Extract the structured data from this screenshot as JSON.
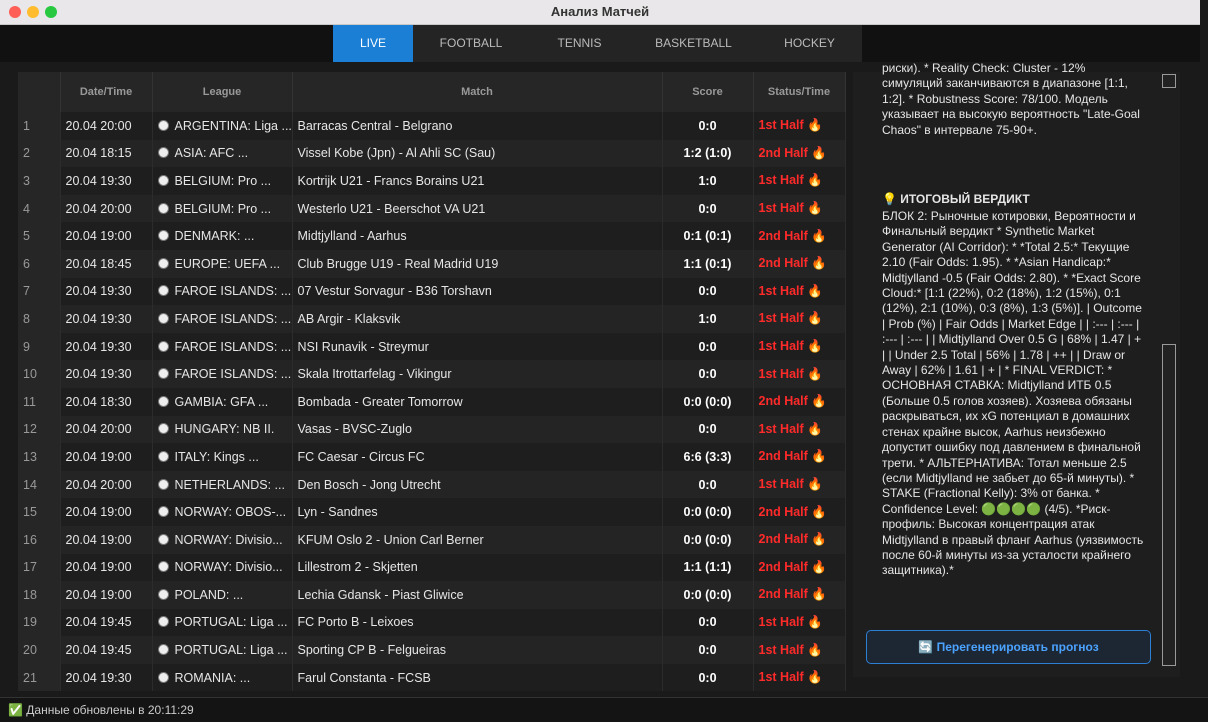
{
  "window": {
    "title": "Анализ Матчей"
  },
  "tabs": [
    "LIVE",
    "FOOTBALL",
    "TENNIS",
    "BASKETBALL",
    "HOCKEY"
  ],
  "table": {
    "headers": [
      "Date/Time",
      "League",
      "Match",
      "Score",
      "Status/Time"
    ],
    "rows": [
      [
        "1",
        "20.04 20:00",
        "ARGENTINA: Liga ...",
        "Barracas Central - Belgrano",
        "0:0",
        "1st Half 🔥"
      ],
      [
        "2",
        "20.04 18:15",
        "ASIA: AFC ...",
        "Vissel Kobe (Jpn) - Al Ahli SC (Sau)",
        "1:2  (1:0)",
        "2nd Half 🔥"
      ],
      [
        "3",
        "20.04 19:30",
        "BELGIUM: Pro ...",
        "Kortrijk U21 - Francs Borains U21",
        "1:0",
        "1st Half 🔥"
      ],
      [
        "4",
        "20.04 20:00",
        "BELGIUM: Pro ...",
        "Westerlo U21 - Beerschot VA U21",
        "0:0",
        "1st Half 🔥"
      ],
      [
        "5",
        "20.04 19:00",
        "DENMARK: ...",
        "Midtjylland - Aarhus",
        "0:1  (0:1)",
        "2nd Half 🔥"
      ],
      [
        "6",
        "20.04 18:45",
        "EUROPE: UEFA ...",
        "Club Brugge U19 - Real Madrid U19",
        "1:1  (0:1)",
        "2nd Half 🔥"
      ],
      [
        "7",
        "20.04 19:30",
        "FAROE ISLANDS: ...",
        "07 Vestur Sorvagur - B36 Torshavn",
        "0:0",
        "1st Half 🔥"
      ],
      [
        "8",
        "20.04 19:30",
        "FAROE ISLANDS: ...",
        "AB Argir - Klaksvik",
        "1:0",
        "1st Half 🔥"
      ],
      [
        "9",
        "20.04 19:30",
        "FAROE ISLANDS: ...",
        "NSI Runavik - Streymur",
        "0:0",
        "1st Half 🔥"
      ],
      [
        "10",
        "20.04 19:30",
        "FAROE ISLANDS: ...",
        "Skala Itrottarfelag - Vikingur",
        "0:0",
        "1st Half 🔥"
      ],
      [
        "11",
        "20.04 18:30",
        "GAMBIA: GFA ...",
        "Bombada - Greater Tomorrow",
        "0:0  (0:0)",
        "2nd Half 🔥"
      ],
      [
        "12",
        "20.04 20:00",
        "HUNGARY: NB II.",
        "Vasas - BVSC-Zuglo",
        "0:0",
        "1st Half 🔥"
      ],
      [
        "13",
        "20.04 19:00",
        "ITALY: Kings ...",
        "FC Caesar - Circus FC",
        "6:6  (3:3)",
        "2nd Half 🔥"
      ],
      [
        "14",
        "20.04 20:00",
        "NETHERLANDS: ...",
        "Den Bosch - Jong Utrecht",
        "0:0",
        "1st Half 🔥"
      ],
      [
        "15",
        "20.04 19:00",
        "NORWAY: OBOS-...",
        "Lyn - Sandnes",
        "0:0  (0:0)",
        "2nd Half 🔥"
      ],
      [
        "16",
        "20.04 19:00",
        "NORWAY: Divisio...",
        "KFUM Oslo 2 - Union Carl Berner",
        "0:0  (0:0)",
        "2nd Half 🔥"
      ],
      [
        "17",
        "20.04 19:00",
        "NORWAY: Divisio...",
        "Lillestrom 2 - Skjetten",
        "1:1  (1:1)",
        "2nd Half 🔥"
      ],
      [
        "18",
        "20.04 19:00",
        "POLAND: ...",
        "Lechia Gdansk - Piast Gliwice",
        "0:0  (0:0)",
        "2nd Half 🔥"
      ],
      [
        "19",
        "20.04 19:45",
        "PORTUGAL: Liga ...",
        "FC Porto B - Leixoes",
        "0:0",
        "1st Half 🔥"
      ],
      [
        "20",
        "20.04 19:45",
        "PORTUGAL: Liga ...",
        "Sporting CP B - Felgueiras",
        "0:0",
        "1st Half 🔥"
      ],
      [
        "21",
        "20.04 19:30",
        "ROMANIA: ...",
        "Farul Constanta - FCSB",
        "0:0",
        "1st Half 🔥"
      ]
    ]
  },
  "panel": {
    "intro": "риски). * Reality Check: Cluster - 12% симуляций заканчиваются в диапазоне [1:1, 1:2]. * Robustness Score: 78/100. Модель указывает на высокую вероятность \"Late-Goal Chaos\" в интервале 75-90+.",
    "verdict_title": "💡 ИТОГОВЫЙ ВЕРДИКТ",
    "verdict_text": "БЛОК 2: Рыночные котировки, Вероятности и Финальный вердикт * Synthetic Market Generator (AI Corridor): * *Total 2.5:* Текущие 2.10 (Fair Odds: 1.95). * *Asian Handicap:* Midtjylland -0.5 (Fair Odds: 2.80). * *Exact Score Cloud:* [1:1 (22%), 0:2 (18%), 1:2 (15%), 0:1 (12%), 2:1 (10%), 0:3 (8%), 1:3 (5%)]. | Outcome | Prob (%) | Fair Odds | Market Edge | | :--- | :--- | :--- | :--- | | Midtjylland Over 0.5 G | 68% | 1.47 | + | | Under 2.5 Total | 56% | 1.78 | ++ | | Draw or Away | 62% | 1.61 | + | * FINAL VERDICT: * ОСНОВНАЯ СТАВКА: Midtjylland ИТБ 0.5 (Больше 0.5 голов хозяев). Хозяева обязаны раскрываться, их xG потенциал в домашних стенах крайне высок, Aarhus неизбежно допустит ошибку под давлением в финальной трети. * АЛЬТЕРНАТИВА: Тотал меньше 2.5 (если Midtjylland не забьет до 65-й минуты). * STAKE (Fractional Kelly): 3% от банка. * Confidence Level: 🟢🟢🟢🟢 (4/5). *Риск-профиль: Высокая концентрация атак Midtjylland в правый фланг Aarhus (уязвимость после 60-й минуты из-за усталости крайнего защитника).*",
    "button": "🔄 Перегенерировать прогноз"
  },
  "status_bar": "✅ Данные обновлены в 20:11:29"
}
